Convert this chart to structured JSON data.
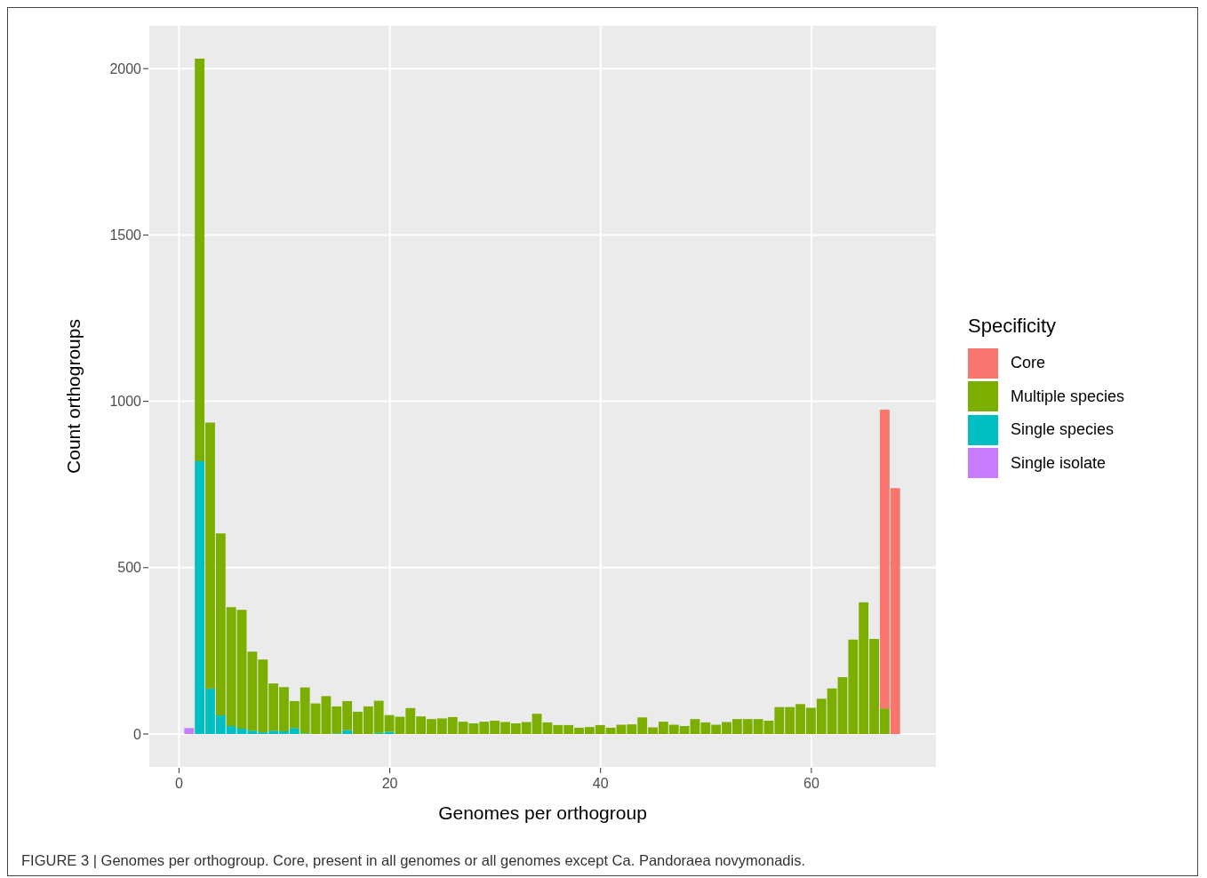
{
  "chart_data": {
    "type": "bar",
    "xlabel": "Genomes per orthogroup",
    "ylabel": "Count orthogroups",
    "legend_title": "Specificity",
    "stacked": true,
    "grid": true,
    "legend": "right",
    "x": [
      1,
      2,
      3,
      4,
      5,
      6,
      7,
      8,
      9,
      10,
      11,
      12,
      13,
      14,
      15,
      16,
      17,
      18,
      19,
      20,
      21,
      22,
      23,
      24,
      25,
      26,
      27,
      28,
      29,
      30,
      31,
      32,
      33,
      34,
      35,
      36,
      37,
      38,
      39,
      40,
      41,
      42,
      43,
      44,
      45,
      46,
      47,
      48,
      49,
      50,
      51,
      52,
      53,
      54,
      55,
      56,
      57,
      58,
      59,
      60,
      61,
      62,
      63,
      64,
      65,
      66,
      67,
      68
    ],
    "series": [
      {
        "name": "Single isolate",
        "color": "#c77cff",
        "values": [
          18,
          0,
          0,
          0,
          0,
          0,
          0,
          0,
          0,
          0,
          0,
          0,
          0,
          0,
          0,
          0,
          0,
          0,
          0,
          0,
          0,
          0,
          0,
          0,
          0,
          0,
          0,
          0,
          0,
          0,
          0,
          0,
          0,
          0,
          0,
          0,
          0,
          0,
          0,
          0,
          0,
          0,
          0,
          0,
          0,
          0,
          0,
          0,
          0,
          0,
          0,
          0,
          0,
          0,
          0,
          0,
          0,
          0,
          0,
          0,
          0,
          0,
          0,
          0,
          0,
          0,
          0,
          0
        ]
      },
      {
        "name": "Single species",
        "color": "#00bfc4",
        "values": [
          0,
          820,
          136,
          56,
          24,
          16,
          10,
          5,
          10,
          8,
          18,
          2,
          0,
          0,
          2,
          12,
          0,
          0,
          3,
          7,
          0,
          0,
          0,
          0,
          0,
          0,
          0,
          0,
          0,
          0,
          0,
          0,
          0,
          0,
          0,
          0,
          0,
          0,
          0,
          0,
          0,
          0,
          0,
          0,
          0,
          0,
          0,
          0,
          0,
          0,
          0,
          0,
          0,
          0,
          0,
          0,
          0,
          0,
          0,
          0,
          0,
          0,
          0,
          0,
          0,
          0,
          0,
          0
        ]
      },
      {
        "name": "Multiple species",
        "color": "#7cae00",
        "values": [
          0,
          1210,
          800,
          547,
          357,
          357,
          238,
          219,
          142,
          133,
          81,
          138,
          92,
          114,
          81,
          87,
          67,
          83,
          97,
          50,
          52,
          78,
          53,
          45,
          47,
          51,
          37,
          32,
          37,
          40,
          36,
          32,
          36,
          61,
          35,
          27,
          27,
          19,
          21,
          27,
          19,
          28,
          29,
          50,
          20,
          37,
          28,
          24,
          45,
          35,
          28,
          36,
          45,
          45,
          45,
          40,
          81,
          81,
          90,
          79,
          106,
          137,
          171,
          284,
          396,
          286,
          77,
          0
        ]
      },
      {
        "name": "Core",
        "color": "#f8766d",
        "values": [
          0,
          0,
          0,
          0,
          0,
          0,
          0,
          0,
          0,
          0,
          0,
          0,
          0,
          0,
          0,
          0,
          0,
          0,
          0,
          0,
          0,
          0,
          0,
          0,
          0,
          0,
          0,
          0,
          0,
          0,
          0,
          0,
          0,
          0,
          0,
          0,
          0,
          0,
          0,
          0,
          0,
          0,
          0,
          0,
          0,
          0,
          0,
          0,
          0,
          0,
          0,
          0,
          0,
          0,
          0,
          0,
          0,
          0,
          0,
          0,
          0,
          0,
          0,
          0,
          0,
          0,
          898,
          739
        ]
      }
    ],
    "xlim": [
      -2.9,
      71.9
    ],
    "xticks": [
      0,
      20,
      40,
      60
    ],
    "ylim": [
      -101.5,
      2131.5
    ],
    "yticks": [
      0,
      500,
      1000,
      1500,
      2000
    ],
    "annotations": [
      "FIGURE 3 | Genomes per orthogroup. Core, present in all genomes or all genomes except Ca. Pandoraea novymonadis."
    ]
  }
}
